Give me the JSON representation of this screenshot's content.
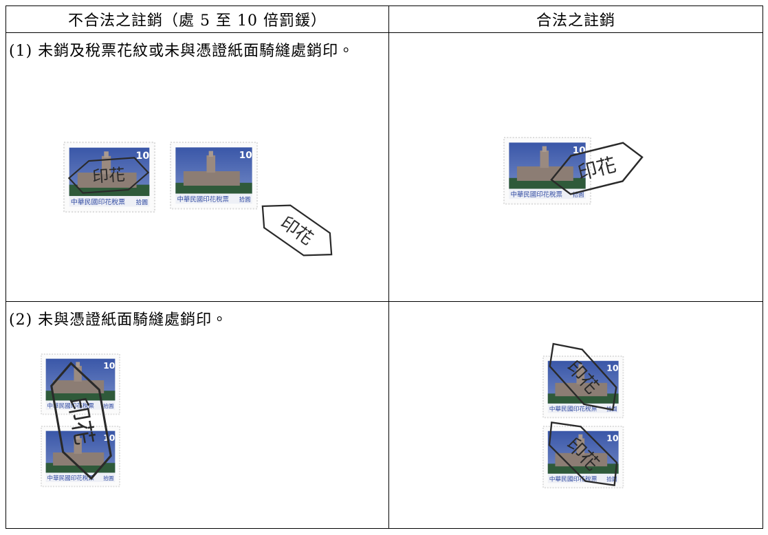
{
  "table": {
    "header": [
      "不合法之註銷（處 5 至 10 倍罰鍰）",
      "合法之註銷"
    ],
    "rows": [
      {
        "illegal": "(1) 未銷及稅票花紋或未與憑證紙面騎縫處銷印。"
      },
      {
        "illegal": "(2) 未與憑證紙面騎縫處銷印。"
      }
    ]
  },
  "stamp": {
    "denomination": "10",
    "caption": "中華民國印花稅票",
    "amount": "拾圓"
  },
  "seal": "印花"
}
